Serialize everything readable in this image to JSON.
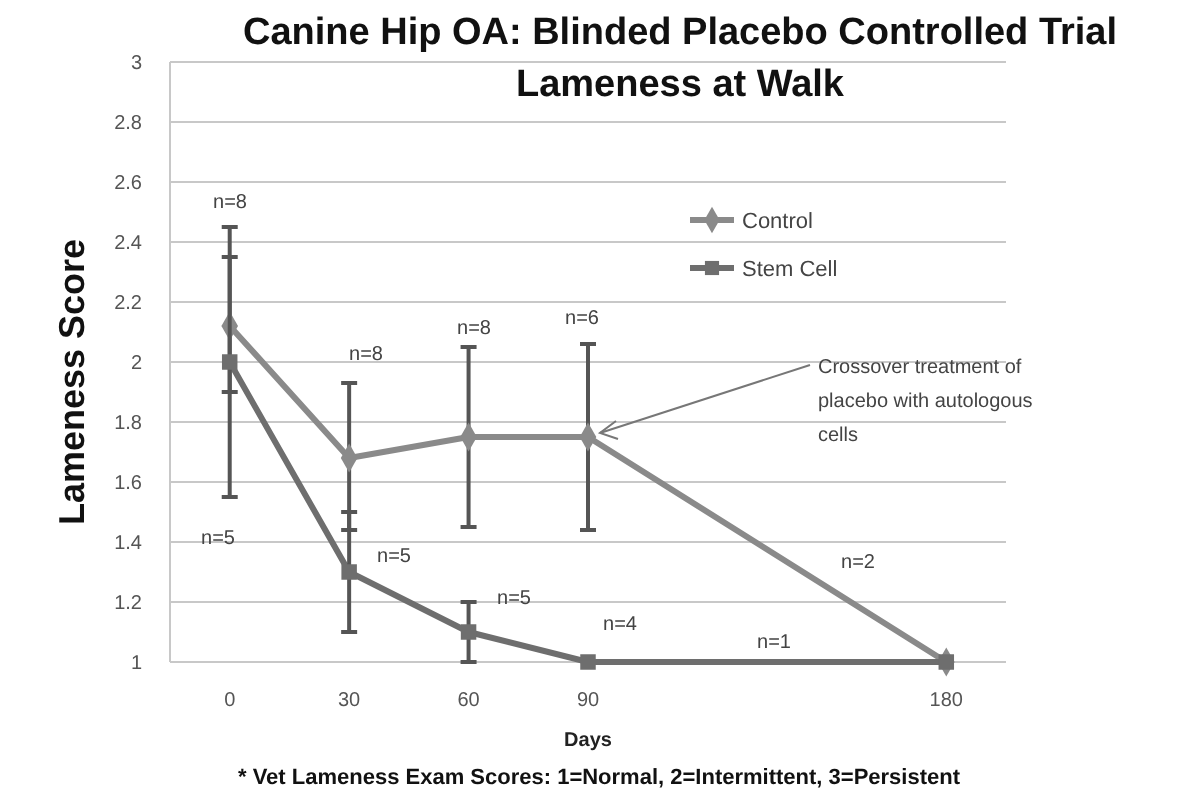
{
  "chart_data": {
    "type": "line",
    "title": "Canine Hip OA: Blinded Placebo Controlled Trial",
    "subtitle": "Lameness at Walk",
    "xlabel": "Days",
    "ylabel": "Lameness Score",
    "x": [
      0,
      30,
      60,
      90,
      180
    ],
    "xlim": [
      -15,
      195
    ],
    "xticks": [
      0,
      30,
      60,
      90,
      180
    ],
    "ylim": [
      1,
      3
    ],
    "yticks": [
      1,
      1.2,
      1.4,
      1.6,
      1.8,
      2,
      2.2,
      2.4,
      2.6,
      2.8,
      3
    ],
    "grid": "y",
    "legend": "top right",
    "series": [
      {
        "name": "Control",
        "color": "#8a8a8a",
        "marker": "diamond",
        "values": [
          2.12,
          1.68,
          1.75,
          1.75,
          1.0
        ],
        "errors": [
          [
            1.9,
            2.35
          ],
          [
            1.44,
            1.93
          ],
          [
            1.45,
            2.05
          ],
          [
            1.44,
            2.06
          ],
          null
        ]
      },
      {
        "name": "Stem Cell",
        "color": "#6e6e6e",
        "marker": "square",
        "values": [
          2.0,
          1.3,
          1.1,
          1.0,
          1.0
        ],
        "errors": [
          [
            1.55,
            2.45
          ],
          [
            1.1,
            1.5
          ],
          [
            1.0,
            1.2
          ],
          null,
          null
        ]
      }
    ],
    "annotations": [
      "n=8",
      "n=5",
      "n=8",
      "n=5",
      "n=8",
      "n=5",
      "n=6",
      "n=4",
      "n=1",
      "n=2",
      {
        "text": "Crossover treatment of placebo with autologous cells",
        "x": 90,
        "y": 1.75
      },
      "* Vet Lameness Exam Scores: 1=Normal, 2=Intermittent, 3=Persistent"
    ]
  }
}
